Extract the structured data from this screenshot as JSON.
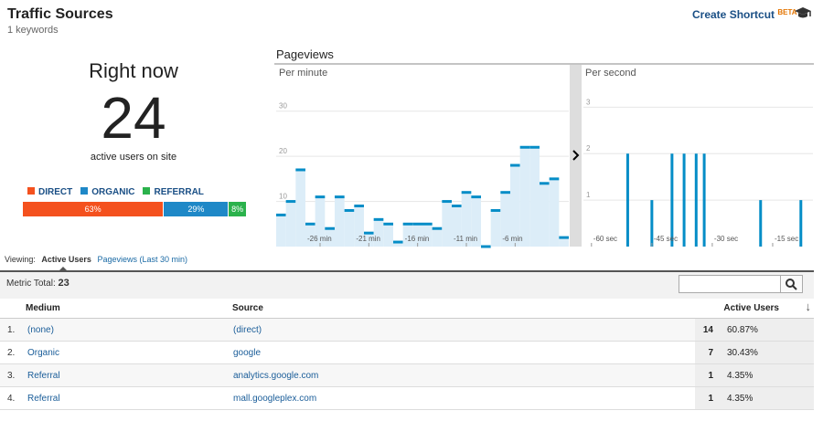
{
  "header": {
    "title": "Traffic Sources",
    "subtitle": "1 keywords",
    "shortcut": "Create Shortcut",
    "beta": "BETA"
  },
  "right_now": {
    "heading": "Right now",
    "count": 24,
    "caption": "active users on site",
    "segments": [
      {
        "name": "DIRECT",
        "color": "#f4511e",
        "value": 63,
        "label": "63%"
      },
      {
        "name": "ORGANIC",
        "color": "#1e88c7",
        "value": 29,
        "label": "29%"
      },
      {
        "name": "REFERRAL",
        "color": "#2bb24c",
        "value": 8,
        "label": "8%"
      }
    ]
  },
  "pageviews": {
    "title": "Pageviews",
    "per_minute": {
      "type": "bar",
      "label": "Per minute",
      "color": "#058dc7",
      "fill": "#dcedf8",
      "xlim": [
        -30.5,
        -0.5
      ],
      "ylim": [
        0,
        35
      ],
      "yticks": [
        10,
        20,
        30
      ],
      "xticks": [
        {
          "value": -26,
          "label": "-26 min"
        },
        {
          "value": -21,
          "label": "-21 min"
        },
        {
          "value": -16,
          "label": "-16 min"
        },
        {
          "value": -11,
          "label": "-11 min"
        },
        {
          "value": -6,
          "label": "-6 min"
        }
      ],
      "x": [
        -30,
        -29,
        -28,
        -27,
        -26,
        -25,
        -24,
        -23,
        -22,
        -21,
        -20,
        -19,
        -18,
        -17,
        -16,
        -15,
        -14,
        -13,
        -12,
        -11,
        -10,
        -9,
        -8,
        -7,
        -6,
        -5,
        -4,
        -3,
        -2,
        -1
      ],
      "values": [
        7,
        10,
        17,
        5,
        11,
        4,
        11,
        8,
        9,
        3,
        6,
        5,
        1,
        5,
        5,
        5,
        4,
        10,
        9,
        12,
        11,
        0,
        8,
        12,
        18,
        22,
        22,
        14,
        15,
        2
      ]
    },
    "per_second": {
      "type": "bar",
      "label": "Per second",
      "color": "#058dc7",
      "xlim": [
        -62,
        -5
      ],
      "ylim": [
        0,
        3.4
      ],
      "yticks": [
        1,
        2,
        3
      ],
      "xticks": [
        {
          "value": -60,
          "label": "-60 sec"
        },
        {
          "value": -45,
          "label": "-45 sec"
        },
        {
          "value": -30,
          "label": "-30 sec"
        },
        {
          "value": -15,
          "label": "-15 sec"
        }
      ],
      "x": [
        -51,
        -45,
        -40,
        -37,
        -34,
        -32,
        -18,
        -8
      ],
      "values": [
        2,
        1,
        2,
        2,
        2,
        2,
        1,
        1
      ]
    }
  },
  "tabs": {
    "viewing": "Viewing:",
    "items": [
      "Active Users",
      "Pageviews (Last 30 min)"
    ]
  },
  "metric_total": {
    "label": "Metric Total:",
    "value": 23
  },
  "table": {
    "columns": [
      "Medium",
      "Source",
      "Active Users"
    ],
    "rows": [
      [
        "1.",
        "(none)",
        "(direct)",
        14,
        "60.87%"
      ],
      [
        "2.",
        "Organic",
        "google",
        7,
        "30.43%"
      ],
      [
        "3.",
        "Referral",
        "analytics.google.com",
        1,
        "4.35%"
      ],
      [
        "4.",
        "Referral",
        "mall.googleplex.com",
        1,
        "4.35%"
      ]
    ]
  }
}
